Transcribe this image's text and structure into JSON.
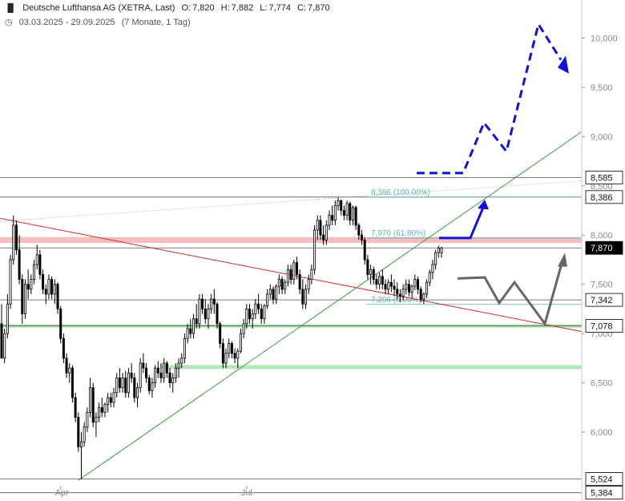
{
  "header": {
    "icon": "candlestick-icon",
    "instrument": "Deutsche Lufthansa AG (XETRA, Last)",
    "open_label": "O:",
    "open": "7,820",
    "high_label": "H:",
    "high": "7,882",
    "low_label": "L:",
    "low": "7,774",
    "close_label": "C:",
    "close": "7,870",
    "period_icon": "clock-icon",
    "period": "03.03.2025 - 29.09.2025",
    "resolution": "(7 Monate, 1 Tag)"
  },
  "chart_data": {
    "type": "candlestick",
    "x_tick_labels": [
      "Apr",
      "Jul"
    ],
    "y_tick_labels": [
      "10,000",
      "9,500",
      "9,000",
      "8,500",
      "8,000",
      "7,500",
      "7,000",
      "6,500",
      "6,000"
    ],
    "y_ticks": [
      10.0,
      9.5,
      9.0,
      8.5,
      8.0,
      7.5,
      7.0,
      6.5,
      6.0
    ],
    "ylim": [
      5.35,
      10.4
    ],
    "x_count": 150,
    "candles": [
      [
        7.1,
        7.3,
        6.8,
        6.75
      ],
      [
        6.75,
        7.05,
        6.7,
        7.0
      ],
      [
        7.0,
        7.4,
        6.95,
        7.3
      ],
      [
        7.3,
        7.8,
        7.25,
        7.75
      ],
      [
        7.75,
        8.2,
        7.7,
        8.1
      ],
      [
        8.1,
        8.15,
        7.8,
        7.85
      ],
      [
        7.85,
        8.0,
        7.5,
        7.55
      ],
      [
        7.55,
        7.6,
        7.1,
        7.2
      ],
      [
        7.2,
        7.55,
        7.15,
        7.5
      ],
      [
        7.5,
        7.65,
        7.35,
        7.45
      ],
      [
        7.45,
        7.6,
        7.4,
        7.55
      ],
      [
        7.55,
        7.75,
        7.5,
        7.7
      ],
      [
        7.7,
        7.9,
        7.65,
        7.8
      ],
      [
        7.8,
        7.85,
        7.55,
        7.6
      ],
      [
        7.6,
        7.65,
        7.4,
        7.45
      ],
      [
        7.45,
        7.5,
        7.3,
        7.4
      ],
      [
        7.4,
        7.6,
        7.35,
        7.55
      ],
      [
        7.55,
        7.58,
        7.35,
        7.4
      ],
      [
        7.4,
        7.55,
        7.3,
        7.5
      ],
      [
        7.5,
        7.52,
        7.2,
        7.25
      ],
      [
        7.25,
        7.28,
        6.9,
        6.95
      ],
      [
        6.95,
        7.0,
        6.7,
        6.75
      ],
      [
        6.75,
        6.8,
        6.55,
        6.6
      ],
      [
        6.6,
        6.7,
        6.5,
        6.65
      ],
      [
        6.65,
        6.68,
        6.3,
        6.35
      ],
      [
        6.35,
        6.4,
        6.1,
        6.15
      ],
      [
        6.15,
        6.2,
        5.8,
        5.85
      ],
      [
        5.85,
        6.0,
        5.52,
        5.9
      ],
      [
        5.9,
        6.1,
        5.85,
        6.05
      ],
      [
        6.05,
        6.25,
        6.0,
        6.2
      ],
      [
        6.2,
        6.55,
        6.15,
        6.45
      ],
      [
        6.45,
        6.5,
        6.05,
        6.1
      ],
      [
        6.1,
        6.2,
        5.95,
        6.15
      ],
      [
        6.15,
        6.3,
        6.1,
        6.25
      ],
      [
        6.25,
        6.35,
        6.15,
        6.2
      ],
      [
        6.2,
        6.3,
        6.15,
        6.28
      ],
      [
        6.28,
        6.4,
        6.2,
        6.35
      ],
      [
        6.35,
        6.4,
        6.25,
        6.3
      ],
      [
        6.3,
        6.45,
        6.25,
        6.4
      ],
      [
        6.4,
        6.6,
        6.35,
        6.55
      ],
      [
        6.55,
        6.65,
        6.4,
        6.45
      ],
      [
        6.45,
        6.6,
        6.4,
        6.55
      ],
      [
        6.55,
        6.62,
        6.35,
        6.4
      ],
      [
        6.4,
        6.65,
        6.35,
        6.6
      ],
      [
        6.6,
        6.7,
        6.5,
        6.55
      ],
      [
        6.55,
        6.6,
        6.3,
        6.35
      ],
      [
        6.35,
        6.5,
        6.25,
        6.45
      ],
      [
        6.45,
        6.75,
        6.4,
        6.7
      ],
      [
        6.7,
        6.8,
        6.6,
        6.65
      ],
      [
        6.65,
        6.7,
        6.5,
        6.55
      ],
      [
        6.55,
        6.58,
        6.38,
        6.42
      ],
      [
        6.42,
        6.55,
        6.35,
        6.5
      ],
      [
        6.5,
        6.68,
        6.45,
        6.65
      ],
      [
        6.65,
        6.72,
        6.55,
        6.6
      ],
      [
        6.6,
        6.7,
        6.5,
        6.55
      ],
      [
        6.55,
        6.75,
        6.5,
        6.7
      ],
      [
        6.7,
        6.72,
        6.55,
        6.6
      ],
      [
        6.6,
        6.65,
        6.45,
        6.5
      ],
      [
        6.5,
        6.6,
        6.4,
        6.55
      ],
      [
        6.55,
        6.7,
        6.5,
        6.65
      ],
      [
        6.65,
        6.75,
        6.55,
        6.7
      ],
      [
        6.7,
        6.8,
        6.65,
        6.75
      ],
      [
        6.75,
        7.0,
        6.7,
        6.95
      ],
      [
        6.95,
        7.1,
        6.9,
        7.05
      ],
      [
        7.05,
        7.15,
        6.95,
        7.0
      ],
      [
        7.0,
        7.2,
        6.95,
        7.15
      ],
      [
        7.15,
        7.3,
        7.05,
        7.1
      ],
      [
        7.1,
        7.4,
        7.05,
        7.35
      ],
      [
        7.35,
        7.4,
        7.2,
        7.25
      ],
      [
        7.25,
        7.35,
        7.1,
        7.15
      ],
      [
        7.15,
        7.3,
        7.05,
        7.25
      ],
      [
        7.25,
        7.4,
        7.2,
        7.35
      ],
      [
        7.35,
        7.45,
        7.2,
        7.3
      ],
      [
        7.3,
        7.32,
        7.05,
        7.1
      ],
      [
        7.1,
        7.12,
        6.85,
        6.9
      ],
      [
        6.9,
        6.95,
        6.65,
        6.7
      ],
      [
        6.7,
        6.85,
        6.65,
        6.8
      ],
      [
        6.8,
        6.95,
        6.75,
        6.9
      ],
      [
        6.9,
        6.92,
        6.75,
        6.8
      ],
      [
        6.8,
        6.85,
        6.7,
        6.75
      ],
      [
        6.75,
        6.85,
        6.65,
        6.82
      ],
      [
        6.82,
        7.05,
        6.8,
        7.0
      ],
      [
        7.0,
        7.15,
        6.95,
        7.1
      ],
      [
        7.1,
        7.3,
        7.05,
        7.25
      ],
      [
        7.25,
        7.3,
        7.1,
        7.15
      ],
      [
        7.15,
        7.25,
        7.05,
        7.2
      ],
      [
        7.2,
        7.35,
        7.15,
        7.3
      ],
      [
        7.3,
        7.4,
        7.2,
        7.25
      ],
      [
        7.25,
        7.3,
        7.1,
        7.15
      ],
      [
        7.15,
        7.3,
        7.1,
        7.28
      ],
      [
        7.28,
        7.45,
        7.25,
        7.4
      ],
      [
        7.4,
        7.5,
        7.35,
        7.45
      ],
      [
        7.45,
        7.48,
        7.3,
        7.35
      ],
      [
        7.35,
        7.5,
        7.3,
        7.48
      ],
      [
        7.48,
        7.6,
        7.4,
        7.55
      ],
      [
        7.55,
        7.58,
        7.4,
        7.45
      ],
      [
        7.45,
        7.55,
        7.4,
        7.52
      ],
      [
        7.52,
        7.7,
        7.48,
        7.65
      ],
      [
        7.65,
        7.7,
        7.5,
        7.55
      ],
      [
        7.55,
        7.75,
        7.5,
        7.72
      ],
      [
        7.72,
        7.78,
        7.55,
        7.6
      ],
      [
        7.6,
        7.65,
        7.4,
        7.45
      ],
      [
        7.45,
        7.55,
        7.25,
        7.3
      ],
      [
        7.3,
        7.5,
        7.25,
        7.45
      ],
      [
        7.45,
        7.6,
        7.4,
        7.55
      ],
      [
        7.55,
        7.7,
        7.5,
        7.65
      ],
      [
        7.65,
        8.1,
        7.6,
        8.05
      ],
      [
        8.05,
        8.2,
        7.95,
        8.15
      ],
      [
        8.15,
        8.2,
        7.95,
        8.0
      ],
      [
        8.0,
        8.1,
        7.9,
        7.95
      ],
      [
        7.95,
        8.15,
        7.9,
        8.1
      ],
      [
        8.1,
        8.25,
        8.05,
        8.2
      ],
      [
        8.2,
        8.3,
        8.1,
        8.15
      ],
      [
        8.15,
        8.35,
        8.1,
        8.3
      ],
      [
        8.3,
        8.38,
        8.25,
        8.35
      ],
      [
        8.35,
        8.36,
        8.2,
        8.25
      ],
      [
        8.25,
        8.3,
        8.15,
        8.2
      ],
      [
        8.2,
        8.35,
        8.15,
        8.32
      ],
      [
        8.32,
        8.34,
        8.1,
        8.15
      ],
      [
        8.15,
        8.3,
        8.1,
        8.28
      ],
      [
        8.28,
        8.3,
        8.05,
        8.1
      ],
      [
        8.1,
        8.12,
        7.95,
        8.0
      ],
      [
        8.0,
        8.05,
        7.9,
        7.95
      ],
      [
        7.95,
        7.98,
        7.7,
        7.75
      ],
      [
        7.75,
        7.8,
        7.55,
        7.6
      ],
      [
        7.6,
        7.7,
        7.5,
        7.65
      ],
      [
        7.65,
        7.68,
        7.5,
        7.55
      ],
      [
        7.55,
        7.6,
        7.45,
        7.5
      ],
      [
        7.5,
        7.62,
        7.45,
        7.58
      ],
      [
        7.58,
        7.65,
        7.45,
        7.5
      ],
      [
        7.5,
        7.55,
        7.4,
        7.45
      ],
      [
        7.45,
        7.55,
        7.4,
        7.52
      ],
      [
        7.52,
        7.6,
        7.42,
        7.48
      ],
      [
        7.48,
        7.55,
        7.38,
        7.45
      ],
      [
        7.45,
        7.52,
        7.35,
        7.4
      ],
      [
        7.4,
        7.45,
        7.32,
        7.38
      ],
      [
        7.38,
        7.5,
        7.34,
        7.45
      ],
      [
        7.45,
        7.55,
        7.4,
        7.5
      ],
      [
        7.5,
        7.55,
        7.38,
        7.42
      ],
      [
        7.42,
        7.5,
        7.36,
        7.48
      ],
      [
        7.48,
        7.6,
        7.44,
        7.55
      ],
      [
        7.55,
        7.58,
        7.4,
        7.45
      ],
      [
        7.45,
        7.48,
        7.32,
        7.35
      ],
      [
        7.35,
        7.42,
        7.3,
        7.4
      ],
      [
        7.4,
        7.55,
        7.36,
        7.52
      ],
      [
        7.52,
        7.65,
        7.48,
        7.62
      ],
      [
        7.62,
        7.75,
        7.55,
        7.7
      ],
      [
        7.7,
        7.85,
        7.65,
        7.82
      ],
      [
        7.82,
        7.89,
        7.77,
        7.87
      ],
      [
        7.82,
        7.88,
        7.77,
        7.87
      ]
    ],
    "price_labels": [
      "8,585",
      "8,386",
      "7,870",
      "7,342",
      "7,078",
      "5,524",
      "5,384"
    ],
    "price_levels": [
      8.585,
      8.386,
      7.87,
      7.342,
      7.078,
      5.524,
      5.384
    ],
    "fibonacci": [
      {
        "label": "8,386 (100.00%)",
        "value": 8.386
      },
      {
        "label": "7,970 (61.80%)",
        "value": 7.97
      },
      {
        "label": "7,296 (0.00%)",
        "value": 7.296
      }
    ],
    "colors": {
      "up": "#ffffff",
      "down": "#000000",
      "support_zone": "#b6e7b6",
      "resistance_zone": "#f4b6b6",
      "trendline_up": "#3a9a3a",
      "trendline_down": "#d62c2c",
      "fib": "#5bb5b5",
      "scenario_bull": "#1111dd",
      "scenario_bear": "#666666",
      "last_price": "#000000"
    }
  }
}
